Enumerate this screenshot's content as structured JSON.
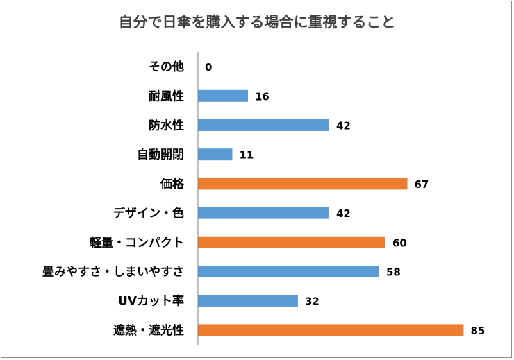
{
  "chart_data": {
    "type": "bar",
    "orientation": "horizontal",
    "title": "自分で日傘を購入する場合に重視すること",
    "categories": [
      "その他",
      "耐風性",
      "防水性",
      "自動開閉",
      "価格",
      "デザイン・色",
      "軽量・コンパクト",
      "畳みやすさ・しまいやすさ",
      "UVカット率",
      "遮熱・遮光性"
    ],
    "values": [
      0,
      16,
      42,
      11,
      67,
      42,
      60,
      58,
      32,
      85
    ],
    "highlight": [
      false,
      false,
      false,
      false,
      true,
      false,
      true,
      false,
      false,
      true
    ],
    "xlim": [
      0,
      90
    ],
    "grid": false,
    "legend": "none"
  },
  "colors": {
    "normal": "#5b9bd5",
    "highlight": "#ed7d31",
    "axis": "#7f7f7f"
  }
}
